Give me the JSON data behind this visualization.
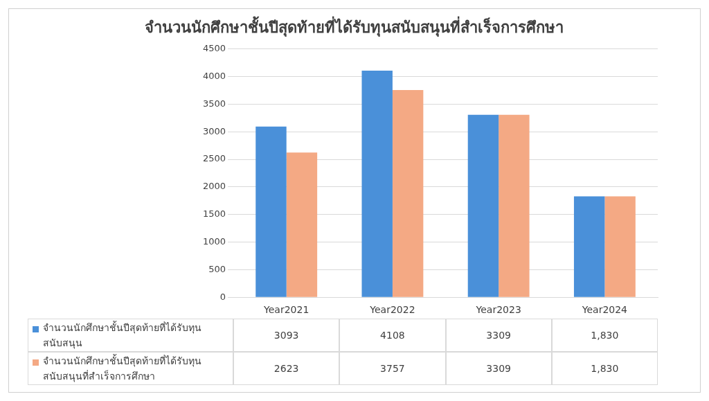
{
  "chart_data": {
    "type": "bar",
    "title": "จำนวนนักศึกษาชั้นปีสุดท้ายที่ได้รับทุนสนับสนุนที่สำเร็จการศึกษา",
    "categories": [
      "Year2021",
      "Year2022",
      "Year2023",
      "Year2024"
    ],
    "series": [
      {
        "name": "จำนวนนักศึกษาชั้นปีสุดท้ายที่ได้รับทุนสนับสนุน",
        "color": "#4a90d9",
        "values": [
          3093,
          4108,
          3309,
          1830
        ],
        "value_labels": [
          "3093",
          "4108",
          "3309",
          "1,830"
        ]
      },
      {
        "name": "จำนวนนักศึกษาชั้นปีสุดท้ายที่ได้รับทุนสนับสนุนที่สำเร็จการศึกษา",
        "color": "#f4a984",
        "values": [
          2623,
          3757,
          3309,
          1830
        ],
        "value_labels": [
          "2623",
          "3757",
          "3309",
          "1,830"
        ]
      }
    ],
    "ylim": [
      0,
      4500
    ],
    "yticks": [
      0,
      500,
      1000,
      1500,
      2000,
      2500,
      3000,
      3500,
      4000,
      4500
    ],
    "grid": "y",
    "legend": "bottom"
  }
}
